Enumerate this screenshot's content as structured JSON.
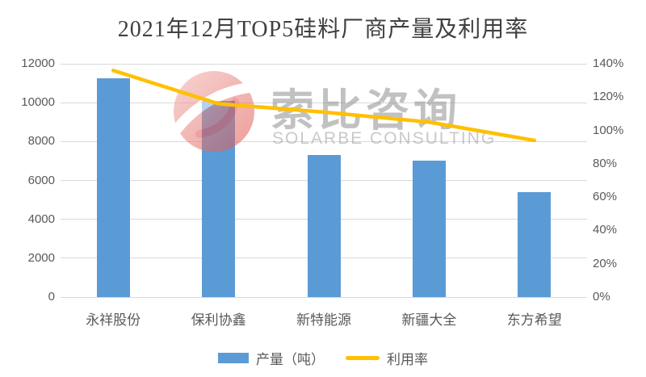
{
  "watermark": {
    "brand_cn": "索比咨询",
    "brand_en": "SOLARBE CONSULTING"
  },
  "colors": {
    "bar": "#5b9bd5",
    "line": "#ffc000",
    "title_text": "#404040",
    "axis_text": "#595959",
    "gridline": "#d9d9d9",
    "watermark_text": "#8f8f8f",
    "watermark_logo": "#e05b55"
  },
  "legend": [
    {
      "label": "产量（吨）",
      "marker": "bar-swatch"
    },
    {
      "label": "利用率",
      "marker": "line-swatch"
    }
  ],
  "chart_data": {
    "type": "bar",
    "title": "2021年12月TOP5硅料厂商产量及利用率",
    "categories": [
      "永祥股份",
      "保利协鑫",
      "新特能源",
      "新疆大全",
      "东方希望"
    ],
    "series": [
      {
        "name": "产量（吨）",
        "type": "bar",
        "axis": "left",
        "values": [
          11250,
          10100,
          7300,
          7000,
          5400
        ]
      },
      {
        "name": "利用率",
        "type": "line",
        "axis": "right",
        "values_pct": [
          136,
          116,
          111,
          105,
          94
        ]
      }
    ],
    "axes": {
      "left": {
        "min": 0,
        "max": 12000,
        "step": 2000,
        "ticks": [
          "0",
          "2000",
          "4000",
          "6000",
          "8000",
          "10000",
          "12000"
        ]
      },
      "right": {
        "min": 0,
        "max": 140,
        "step": 20,
        "ticks": [
          "0%",
          "20%",
          "40%",
          "60%",
          "80%",
          "100%",
          "120%",
          "140%"
        ]
      }
    },
    "grid": true,
    "legend_position": "bottom"
  }
}
